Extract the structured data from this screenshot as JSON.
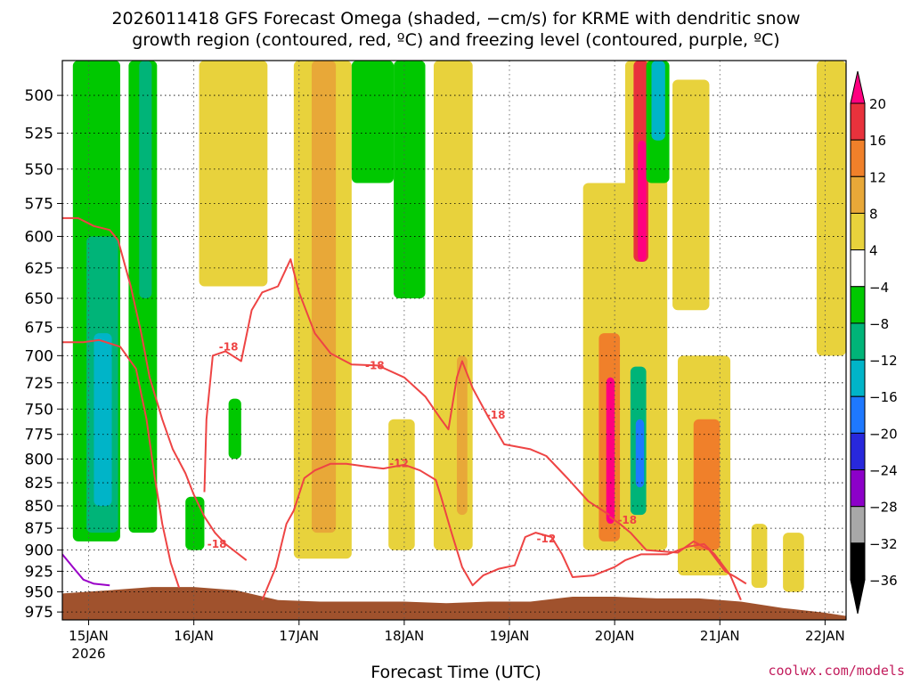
{
  "title_line1": "2026011418 GFS Forecast Omega (shaded, −cm/s) for KRME with dendritic snow",
  "title_line2": "growth region (contoured, red, ºC) and freezing level (contoured, purple, ºC)",
  "credit": "coolwx.com/models",
  "chart_data": {
    "type": "heatmap",
    "title": "2026011418 GFS Forecast Omega (shaded, −cm/s) for KRME with dendritic snow growth region (contoured, red, ºC) and freezing level (contoured, purple, ºC)",
    "xlabel": "Forecast Time (UTC)",
    "ylabel": "",
    "x_ticks": [
      "15JAN",
      "16JAN",
      "17JAN",
      "18JAN",
      "19JAN",
      "20JAN",
      "21JAN",
      "22JAN"
    ],
    "x_tick_sublabel": "2026",
    "x_range_days": [
      14.75,
      22.2
    ],
    "y_ticks": [
      500,
      525,
      550,
      575,
      600,
      625,
      650,
      675,
      700,
      725,
      750,
      775,
      800,
      825,
      850,
      875,
      900,
      925,
      950,
      975
    ],
    "y_range_hpa": [
      478,
      985
    ],
    "y_scale": "log-pressure",
    "grid": true,
    "colorbar": {
      "labels": [
        "20",
        "16",
        "12",
        "8",
        "4",
        "−4",
        "−8",
        "−12",
        "−16",
        "−20",
        "−24",
        "−28",
        "−32",
        "−36"
      ],
      "colors": [
        "#ff0080",
        "#e8323c",
        "#f0802a",
        "#e8a838",
        "#e8d23c",
        "#ffffff",
        "#00c800",
        "#00b478",
        "#00b4c8",
        "#1e78ff",
        "#2828dc",
        "#8c00c8",
        "#a8a8a8",
        "#000000"
      ]
    },
    "contour_labels": [
      {
        "text": "-18",
        "x": 16.33,
        "p": 692
      },
      {
        "text": "-18",
        "x": 17.72,
        "p": 709
      },
      {
        "text": "-18",
        "x": 18.87,
        "p": 756
      },
      {
        "text": "-12",
        "x": 17.95,
        "p": 805
      },
      {
        "text": "-12",
        "x": 19.35,
        "p": 887
      },
      {
        "text": "-18",
        "x": 16.22,
        "p": 893
      },
      {
        "text": "-18",
        "x": 20.12,
        "p": 866
      }
    ],
    "series": [
      {
        "name": "dgz_minus12_left",
        "color": "#ee4444",
        "points": [
          [
            14.75,
            688
          ],
          [
            14.95,
            688
          ],
          [
            15.1,
            686
          ],
          [
            15.3,
            692
          ],
          [
            15.45,
            712
          ],
          [
            15.55,
            760
          ],
          [
            15.63,
            820
          ],
          [
            15.7,
            870
          ],
          [
            15.78,
            915
          ],
          [
            15.86,
            945
          ]
        ]
      },
      {
        "name": "dgz_minus18_top",
        "color": "#ee4444",
        "points": [
          [
            14.75,
            586
          ],
          [
            14.9,
            586
          ],
          [
            15.05,
            592
          ],
          [
            15.2,
            595
          ],
          [
            15.28,
            603
          ],
          [
            15.4,
            640
          ],
          [
            15.5,
            680
          ],
          [
            15.58,
            720
          ],
          [
            15.7,
            760
          ],
          [
            15.8,
            790
          ],
          [
            15.92,
            815
          ],
          [
            16.0,
            838
          ],
          [
            16.1,
            862
          ],
          [
            16.2,
            880
          ],
          [
            16.3,
            893
          ],
          [
            16.5,
            912
          ]
        ]
      },
      {
        "name": "dgz_minus18_mid",
        "color": "#ee4444",
        "points": [
          [
            16.1,
            835
          ],
          [
            16.12,
            760
          ],
          [
            16.18,
            700
          ],
          [
            16.3,
            696
          ],
          [
            16.45,
            705
          ],
          [
            16.55,
            660
          ],
          [
            16.65,
            645
          ],
          [
            16.8,
            640
          ],
          [
            16.92,
            618
          ],
          [
            17.0,
            645
          ],
          [
            17.15,
            680
          ],
          [
            17.3,
            698
          ],
          [
            17.5,
            708
          ],
          [
            17.75,
            709
          ],
          [
            18.0,
            720
          ],
          [
            18.2,
            738
          ],
          [
            18.35,
            760
          ],
          [
            18.42,
            770
          ],
          [
            18.5,
            720
          ],
          [
            18.55,
            705
          ],
          [
            18.65,
            730
          ],
          [
            18.8,
            758
          ],
          [
            18.95,
            785
          ],
          [
            19.2,
            790
          ],
          [
            19.35,
            797
          ],
          [
            19.55,
            820
          ],
          [
            19.75,
            845
          ],
          [
            19.95,
            860
          ]
        ]
      },
      {
        "name": "dgz_minus12_bottom",
        "color": "#ee4444",
        "points": [
          [
            16.65,
            960
          ],
          [
            16.78,
            920
          ],
          [
            16.88,
            870
          ],
          [
            16.95,
            855
          ],
          [
            17.05,
            820
          ],
          [
            17.15,
            812
          ],
          [
            17.3,
            805
          ],
          [
            17.45,
            805
          ],
          [
            17.65,
            808
          ],
          [
            17.8,
            810
          ],
          [
            18.0,
            806
          ],
          [
            18.15,
            812
          ],
          [
            18.3,
            822
          ],
          [
            18.35,
            840
          ],
          [
            18.45,
            880
          ],
          [
            18.55,
            920
          ],
          [
            18.65,
            942
          ],
          [
            18.75,
            930
          ],
          [
            18.9,
            922
          ],
          [
            19.05,
            918
          ],
          [
            19.15,
            885
          ],
          [
            19.25,
            880
          ],
          [
            19.4,
            885
          ],
          [
            19.5,
            905
          ],
          [
            19.6,
            932
          ],
          [
            19.8,
            930
          ],
          [
            20.0,
            920
          ],
          [
            20.1,
            912
          ],
          [
            20.25,
            905
          ],
          [
            20.5,
            905
          ],
          [
            20.7,
            896
          ],
          [
            20.85,
            893
          ],
          [
            20.95,
            905
          ],
          [
            21.1,
            930
          ],
          [
            21.2,
            960
          ]
        ]
      },
      {
        "name": "dgz_minus18_right",
        "color": "#ee4444",
        "points": [
          [
            19.95,
            862
          ],
          [
            20.05,
            870
          ],
          [
            20.15,
            880
          ],
          [
            20.3,
            900
          ],
          [
            20.6,
            903
          ],
          [
            20.75,
            890
          ],
          [
            20.9,
            900
          ],
          [
            21.05,
            925
          ],
          [
            21.15,
            932
          ],
          [
            21.25,
            940
          ]
        ]
      },
      {
        "name": "freezing_level",
        "color": "#9a00c8",
        "points": [
          [
            14.75,
            905
          ],
          [
            14.85,
            920
          ],
          [
            14.95,
            935
          ],
          [
            15.05,
            940
          ],
          [
            15.2,
            942
          ]
        ]
      }
    ],
    "omega_shading": [
      {
        "x0": 14.85,
        "x1": 15.3,
        "p0": 478,
        "p1": 890,
        "value": -8
      },
      {
        "x0": 14.98,
        "x1": 15.28,
        "p0": 600,
        "p1": 880,
        "value": -12
      },
      {
        "x0": 15.05,
        "x1": 15.22,
        "p0": 680,
        "p1": 850,
        "value": -16
      },
      {
        "x0": 15.38,
        "x1": 15.65,
        "p0": 478,
        "p1": 880,
        "value": -8
      },
      {
        "x0": 15.48,
        "x1": 15.6,
        "p0": 478,
        "p1": 650,
        "value": -12
      },
      {
        "x0": 15.92,
        "x1": 16.1,
        "p0": 840,
        "p1": 900,
        "value": -8
      },
      {
        "x0": 16.33,
        "x1": 16.45,
        "p0": 740,
        "p1": 800,
        "value": -8
      },
      {
        "x0": 16.05,
        "x1": 16.7,
        "p0": 478,
        "p1": 640,
        "value": 4
      },
      {
        "x0": 16.95,
        "x1": 17.5,
        "p0": 478,
        "p1": 910,
        "value": 4
      },
      {
        "x0": 17.12,
        "x1": 17.35,
        "p0": 478,
        "p1": 880,
        "value": 8
      },
      {
        "x0": 17.5,
        "x1": 17.9,
        "p0": 478,
        "p1": 560,
        "value": -8
      },
      {
        "x0": 17.9,
        "x1": 18.2,
        "p0": 478,
        "p1": 650,
        "value": -8
      },
      {
        "x0": 17.85,
        "x1": 18.1,
        "p0": 760,
        "p1": 900,
        "value": 4
      },
      {
        "x0": 18.28,
        "x1": 18.65,
        "p0": 478,
        "p1": 900,
        "value": 4
      },
      {
        "x0": 18.5,
        "x1": 18.6,
        "p0": 700,
        "p1": 860,
        "value": 8
      },
      {
        "x0": 19.7,
        "x1": 20.2,
        "p0": 560,
        "p1": 900,
        "value": 4
      },
      {
        "x0": 19.85,
        "x1": 20.05,
        "p0": 680,
        "p1": 890,
        "value": 12
      },
      {
        "x0": 19.92,
        "x1": 20.0,
        "p0": 720,
        "p1": 870,
        "value": 20
      },
      {
        "x0": 20.1,
        "x1": 20.5,
        "p0": 478,
        "p1": 900,
        "value": 4
      },
      {
        "x0": 20.18,
        "x1": 20.32,
        "p0": 478,
        "p1": 620,
        "value": 16
      },
      {
        "x0": 20.22,
        "x1": 20.3,
        "p0": 530,
        "p1": 620,
        "value": 20
      },
      {
        "x0": 20.15,
        "x1": 20.3,
        "p0": 710,
        "p1": 860,
        "value": -12
      },
      {
        "x0": 20.2,
        "x1": 20.28,
        "p0": 760,
        "p1": 830,
        "value": -20
      },
      {
        "x0": 20.3,
        "x1": 20.52,
        "p0": 478,
        "p1": 560,
        "value": -8
      },
      {
        "x0": 20.35,
        "x1": 20.48,
        "p0": 478,
        "p1": 530,
        "value": -16
      },
      {
        "x0": 20.6,
        "x1": 21.1,
        "p0": 700,
        "p1": 930,
        "value": 4
      },
      {
        "x0": 20.75,
        "x1": 21.0,
        "p0": 760,
        "p1": 900,
        "value": 12
      },
      {
        "x0": 20.55,
        "x1": 20.9,
        "p0": 490,
        "p1": 660,
        "value": 4
      },
      {
        "x0": 21.3,
        "x1": 21.45,
        "p0": 870,
        "p1": 945,
        "value": 4
      },
      {
        "x0": 21.6,
        "x1": 21.8,
        "p0": 880,
        "p1": 950,
        "value": 4
      },
      {
        "x0": 21.92,
        "x1": 22.2,
        "p0": 478,
        "p1": 700,
        "value": 4
      }
    ],
    "ground_surface_hpa": [
      [
        14.75,
        952
      ],
      [
        15.2,
        948
      ],
      [
        15.6,
        944
      ],
      [
        16.0,
        944
      ],
      [
        16.4,
        948
      ],
      [
        16.8,
        960
      ],
      [
        17.2,
        962
      ],
      [
        17.6,
        962
      ],
      [
        18.0,
        962
      ],
      [
        18.4,
        964
      ],
      [
        18.8,
        962
      ],
      [
        19.2,
        962
      ],
      [
        19.6,
        956
      ],
      [
        20.0,
        956
      ],
      [
        20.4,
        958
      ],
      [
        20.8,
        958
      ],
      [
        21.2,
        962
      ],
      [
        21.6,
        970
      ],
      [
        22.0,
        976
      ],
      [
        22.2,
        980
      ]
    ]
  }
}
